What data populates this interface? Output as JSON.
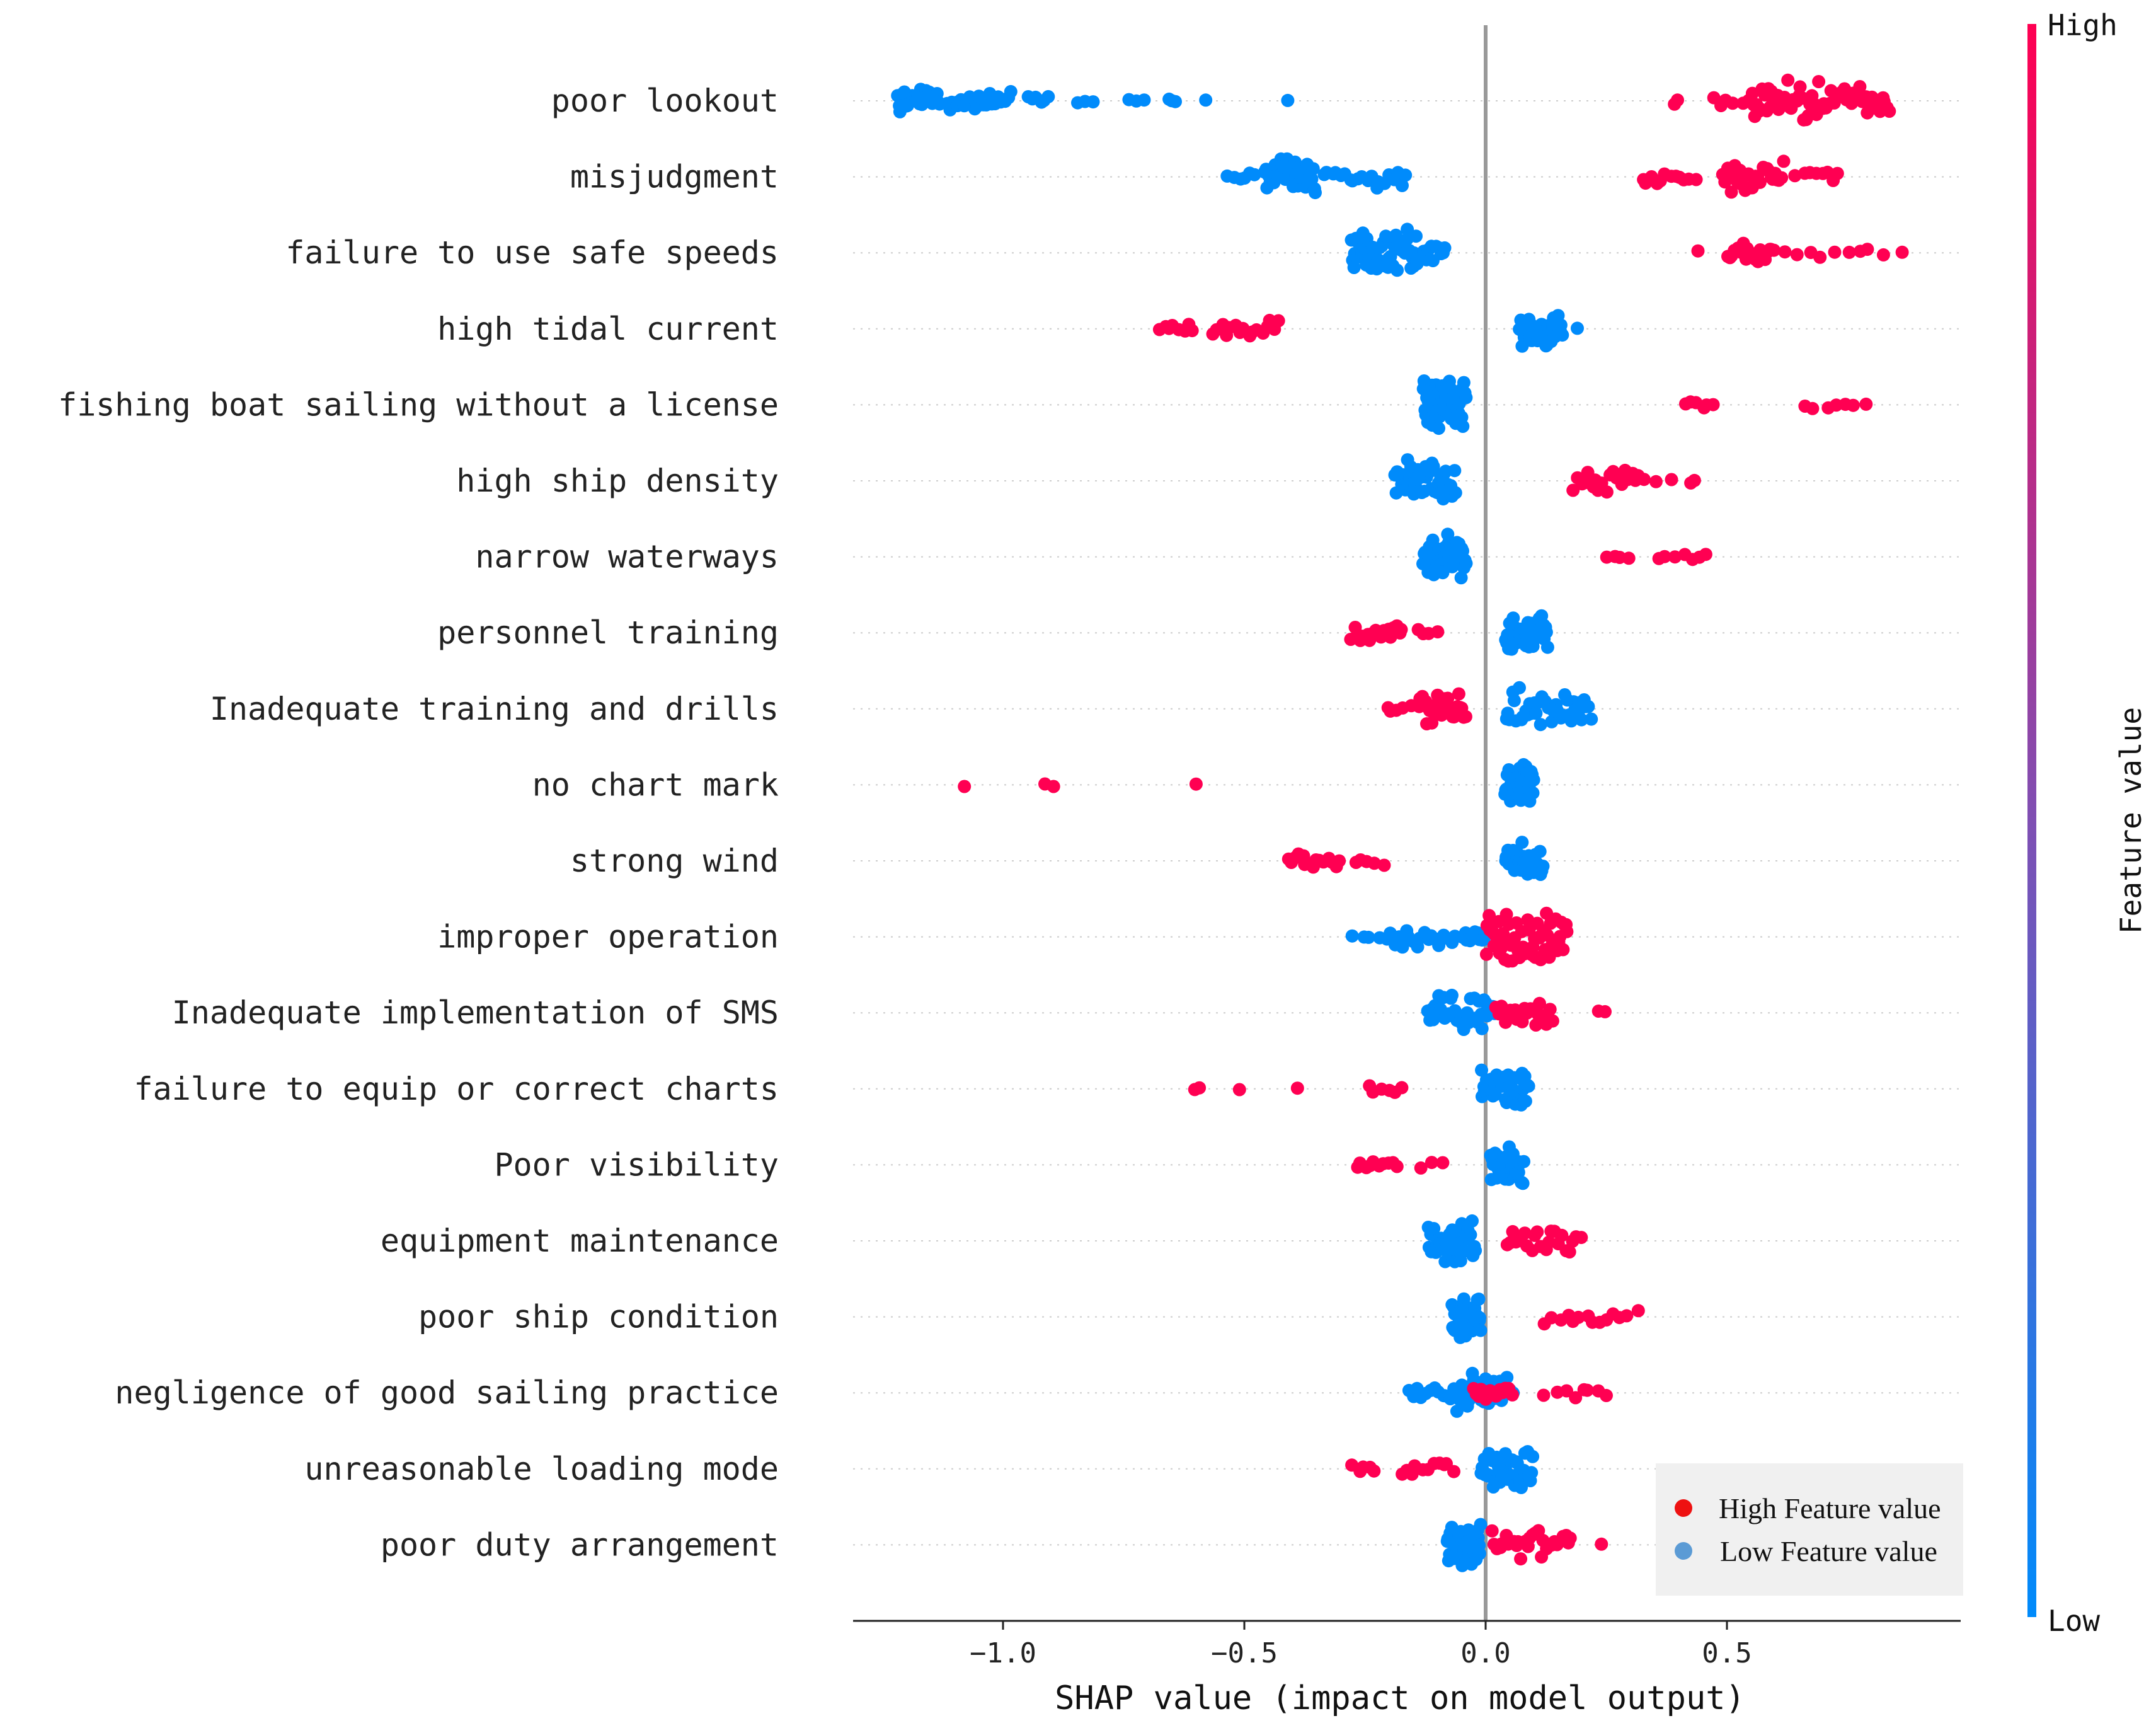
{
  "chart_data": {
    "type": "scatter",
    "subtype": "shap-beeswarm",
    "xlabel": "SHAP value (impact on model output)",
    "xlim": [
      -1.3,
      0.98
    ],
    "xticks": [
      -1.0,
      -0.5,
      0.0,
      0.5
    ],
    "xtick_labels": [
      "−1.0",
      "−0.5",
      "0.0",
      "0.5"
    ],
    "colorbar": {
      "label": "Feature value",
      "high": "High",
      "low": "Low",
      "color_high": "#ff0052",
      "color_low": "#008bfb"
    },
    "legend": {
      "position": "bottom-right",
      "entries": [
        {
          "label": "High Feature value",
          "color": "#ee1111"
        },
        {
          "label": "Low Feature value",
          "color": "#5b9bd5"
        }
      ]
    },
    "features": [
      {
        "name": "poor  lookout",
        "low": [
          [
            -1.22,
            -1.13,
            30
          ],
          [
            -1.12,
            -0.98,
            22
          ],
          [
            -0.95,
            -0.9,
            6
          ],
          [
            -0.85,
            -0.8,
            3
          ],
          [
            -0.75,
            -0.7,
            3
          ],
          [
            -0.66,
            -0.64,
            3
          ],
          [
            -0.58,
            -0.57,
            1
          ],
          [
            -0.41,
            -0.4,
            1
          ]
        ],
        "high": [
          [
            0.39,
            0.4,
            2
          ],
          [
            0.47,
            0.55,
            6
          ],
          [
            0.55,
            0.7,
            40
          ],
          [
            0.7,
            0.84,
            28
          ]
        ]
      },
      {
        "name": "misjudgment",
        "low": [
          [
            -0.54,
            -0.47,
            6
          ],
          [
            -0.46,
            -0.35,
            35
          ],
          [
            -0.34,
            -0.16,
            20
          ]
        ],
        "high": [
          [
            0.32,
            0.44,
            12
          ],
          [
            0.49,
            0.62,
            30
          ],
          [
            0.64,
            0.74,
            8
          ]
        ]
      },
      {
        "name": "failure to use safe speeds",
        "low": [
          [
            -0.28,
            -0.14,
            50
          ],
          [
            -0.14,
            -0.08,
            12
          ]
        ],
        "high": [
          [
            0.44,
            0.45,
            1
          ],
          [
            0.5,
            0.6,
            22
          ],
          [
            0.6,
            0.87,
            10
          ]
        ]
      },
      {
        "name": "high tidal current",
        "low": [
          [
            0.07,
            0.16,
            40
          ],
          [
            0.19,
            0.2,
            1
          ]
        ],
        "high": [
          [
            -0.68,
            -0.6,
            8
          ],
          [
            -0.57,
            -0.42,
            16
          ]
        ]
      },
      {
        "name": "fishing boat sailing without a license",
        "low": [
          [
            -0.13,
            -0.04,
            60
          ]
        ],
        "high": [
          [
            0.41,
            0.48,
            6
          ],
          [
            0.65,
            0.8,
            7
          ]
        ]
      },
      {
        "name": "high ship density",
        "low": [
          [
            -0.19,
            -0.06,
            45
          ]
        ],
        "high": [
          [
            0.18,
            0.33,
            20
          ],
          [
            0.35,
            0.46,
            4
          ]
        ]
      },
      {
        "name": "narrow waterways",
        "low": [
          [
            -0.13,
            -0.04,
            45
          ]
        ],
        "high": [
          [
            0.25,
            0.3,
            4
          ],
          [
            0.35,
            0.47,
            7
          ]
        ]
      },
      {
        "name": "personnel training",
        "low": [
          [
            0.04,
            0.13,
            40
          ]
        ],
        "high": [
          [
            -0.28,
            -0.17,
            20
          ],
          [
            -0.15,
            -0.09,
            4
          ]
        ]
      },
      {
        "name": "Inadequate training and drills",
        "low": [
          [
            0.04,
            0.22,
            40
          ]
        ],
        "high": [
          [
            -0.21,
            -0.15,
            5
          ],
          [
            -0.14,
            -0.04,
            30
          ]
        ]
      },
      {
        "name": "no chart mark",
        "low": [
          [
            0.04,
            0.1,
            40
          ]
        ],
        "high": [
          [
            -1.08,
            -1.08,
            1
          ],
          [
            -0.93,
            -0.87,
            2
          ],
          [
            -0.6,
            -0.6,
            1
          ]
        ]
      },
      {
        "name": "strong wind",
        "low": [
          [
            0.04,
            0.12,
            35
          ]
        ],
        "high": [
          [
            -0.41,
            -0.3,
            16
          ],
          [
            -0.28,
            -0.2,
            5
          ]
        ]
      },
      {
        "name": "improper operation",
        "low": [
          [
            -0.28,
            -0.2,
            5
          ],
          [
            -0.2,
            -0.06,
            18
          ],
          [
            -0.05,
            0.0,
            10
          ]
        ],
        "high": [
          [
            0.0,
            0.17,
            60
          ]
        ]
      },
      {
        "name": "Inadequate implementation of SMS",
        "low": [
          [
            -0.12,
            0.02,
            40
          ]
        ],
        "high": [
          [
            0.02,
            0.14,
            25
          ],
          [
            0.23,
            0.25,
            2
          ]
        ]
      },
      {
        "name": "failure to equip or correct charts",
        "low": [
          [
            -0.01,
            0.09,
            40
          ]
        ],
        "high": [
          [
            -0.61,
            -0.58,
            2
          ],
          [
            -0.51,
            -0.5,
            1
          ],
          [
            -0.39,
            -0.38,
            1
          ],
          [
            -0.25,
            -0.16,
            6
          ]
        ]
      },
      {
        "name": "Poor visibility",
        "low": [
          [
            0.01,
            0.08,
            40
          ]
        ],
        "high": [
          [
            -0.27,
            -0.18,
            10
          ],
          [
            -0.14,
            -0.07,
            3
          ]
        ]
      },
      {
        "name": "equipment maintenance",
        "low": [
          [
            -0.12,
            -0.02,
            40
          ]
        ],
        "high": [
          [
            0.04,
            0.2,
            22
          ]
        ]
      },
      {
        "name": "poor ship condition",
        "low": [
          [
            -0.07,
            -0.01,
            45
          ]
        ],
        "high": [
          [
            0.12,
            0.32,
            14
          ]
        ]
      },
      {
        "name": "negligence of good sailing practice",
        "low": [
          [
            -0.16,
            -0.06,
            12
          ],
          [
            -0.06,
            0.06,
            35
          ]
        ],
        "high": [
          [
            -0.03,
            0.06,
            14
          ],
          [
            0.12,
            0.26,
            8
          ]
        ]
      },
      {
        "name": "unreasonable loading mode",
        "low": [
          [
            -0.01,
            0.1,
            40
          ]
        ],
        "high": [
          [
            -0.28,
            -0.22,
            5
          ],
          [
            -0.18,
            -0.06,
            11
          ]
        ]
      },
      {
        "name": "poor duty arrangement",
        "low": [
          [
            -0.08,
            -0.01,
            45
          ]
        ],
        "high": [
          [
            0.01,
            0.18,
            30
          ],
          [
            0.24,
            0.25,
            1
          ]
        ]
      }
    ]
  }
}
